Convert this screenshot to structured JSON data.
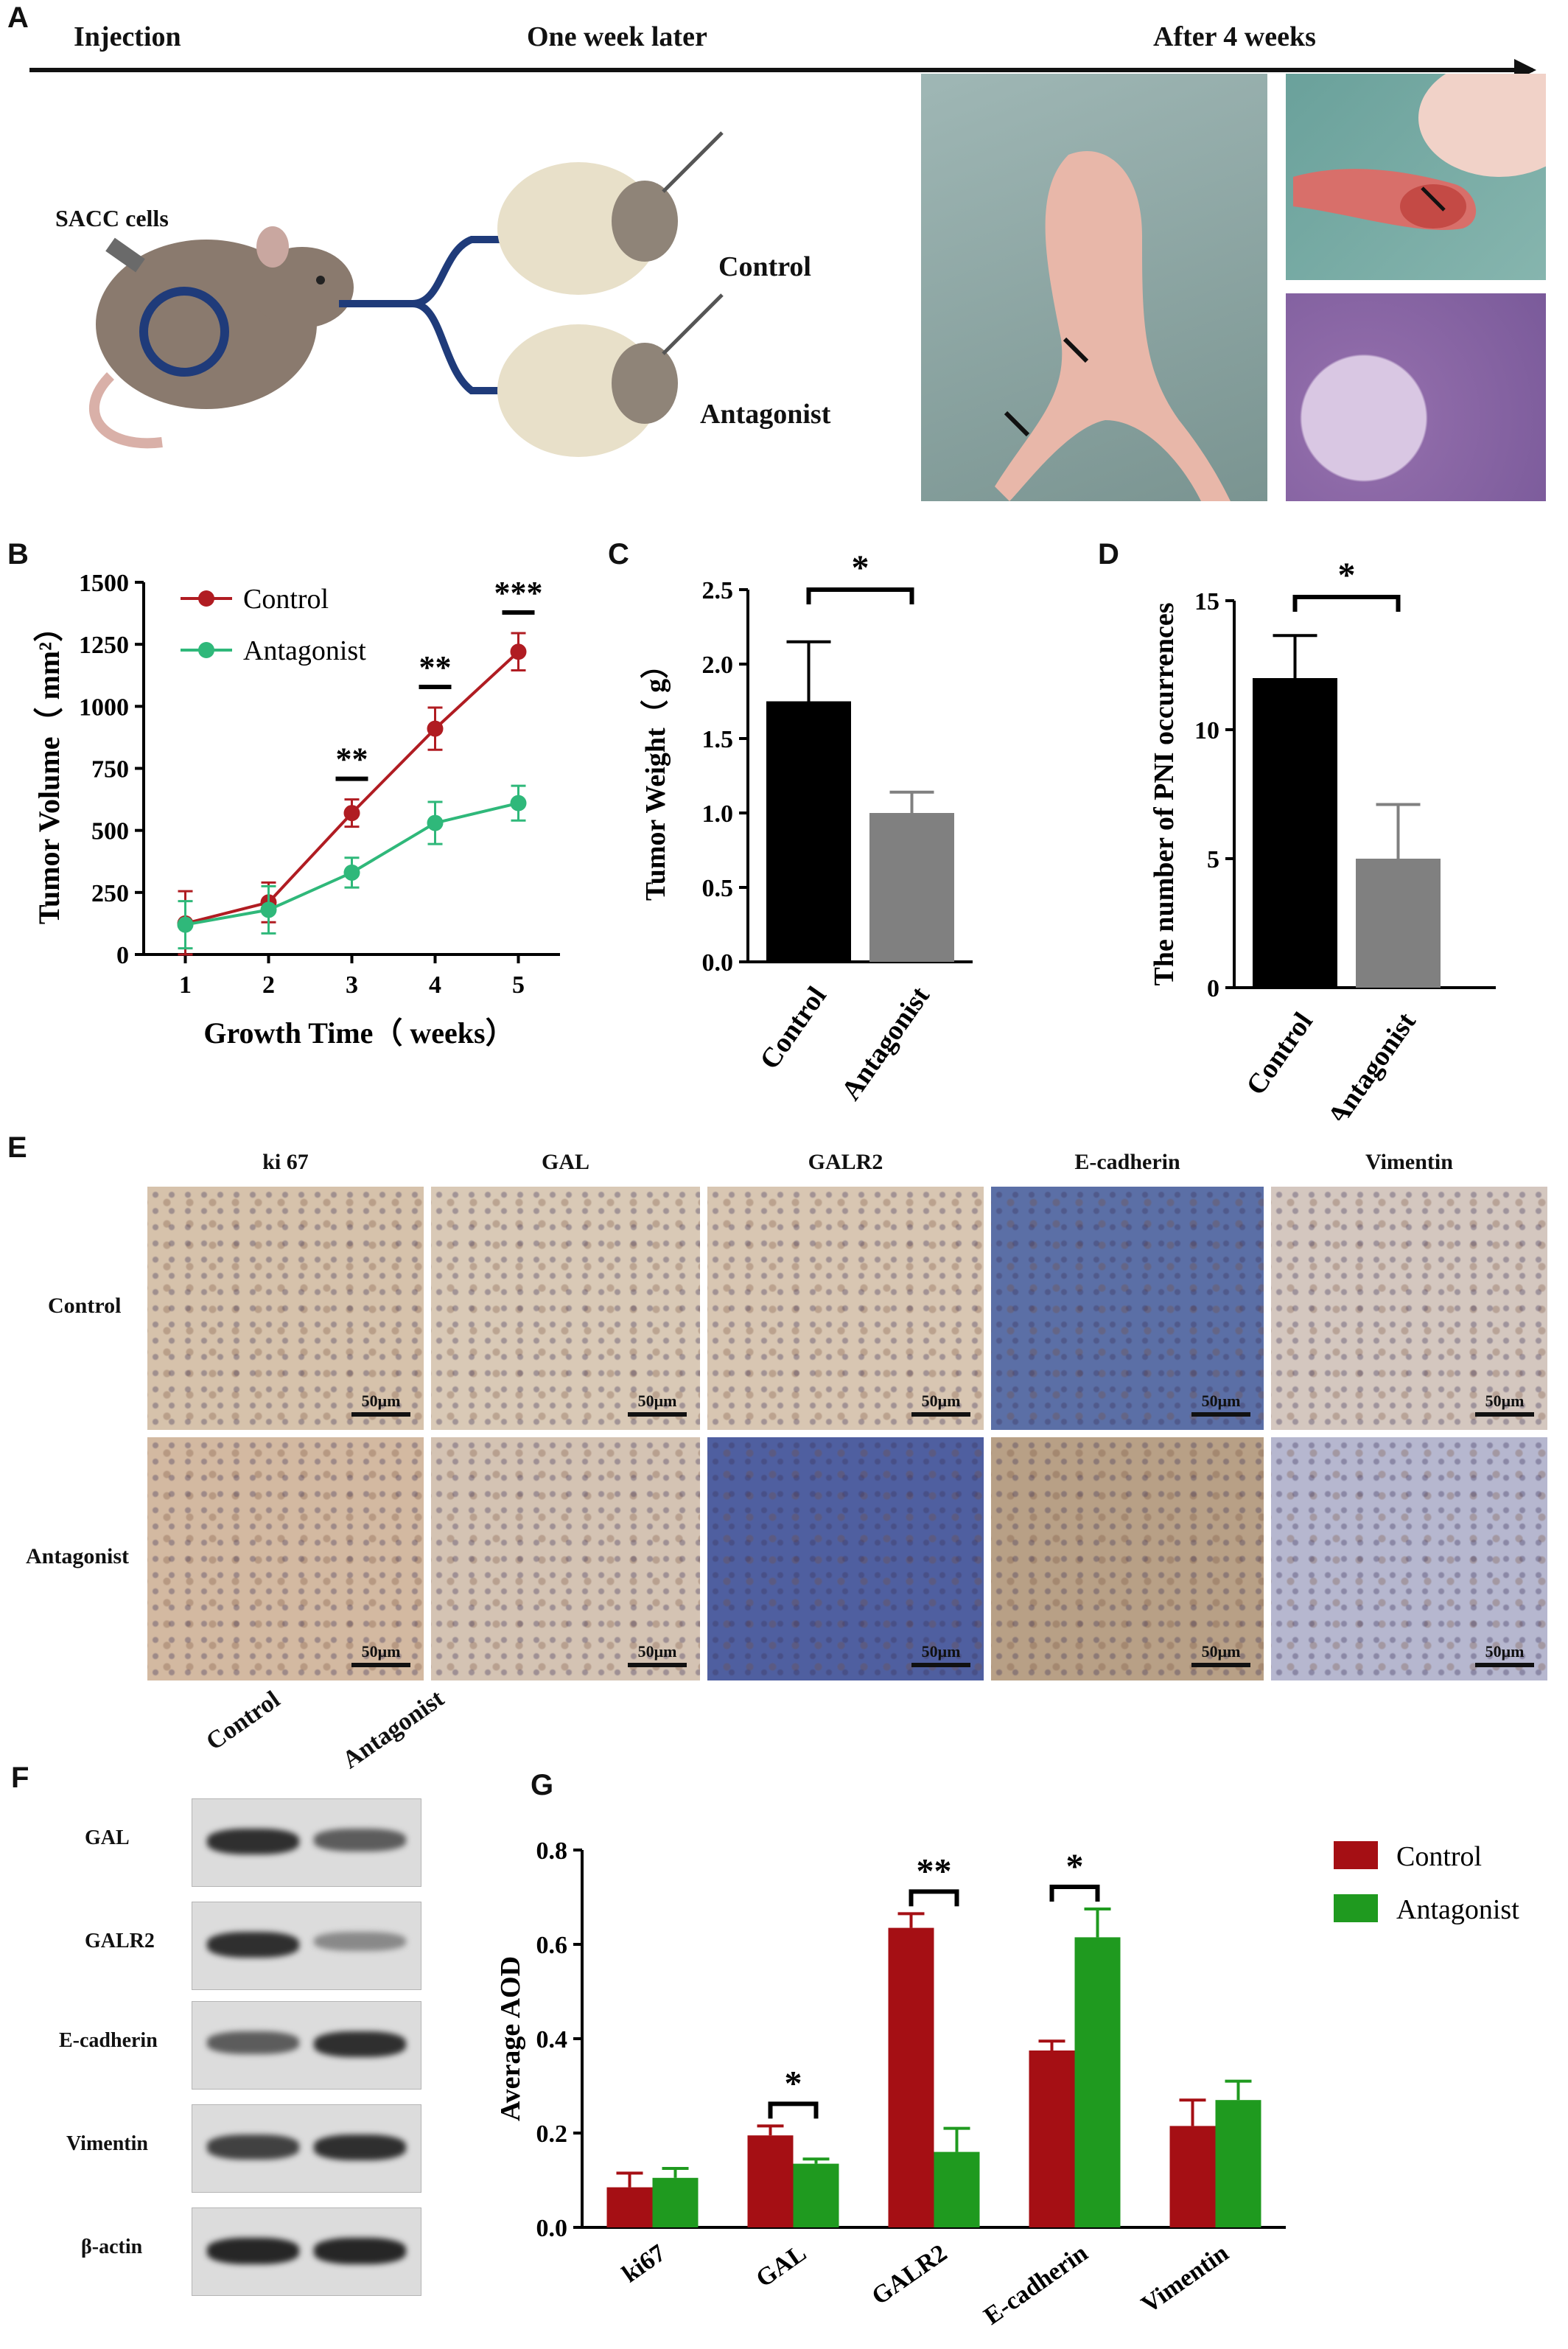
{
  "panels": {
    "a": "A",
    "b": "B",
    "c": "C",
    "d": "D",
    "e": "E",
    "f": "F",
    "g": "G"
  },
  "panelA": {
    "timeline": [
      "Injection",
      "One week later",
      "After 4 weeks"
    ],
    "cells_label": "SACC cells",
    "groups": [
      "Control",
      "Antagonist"
    ]
  },
  "panelE": {
    "columns": [
      "ki 67",
      "GAL",
      "GALR2",
      "E-cadherin",
      "Vimentin"
    ],
    "rows": [
      "Control",
      "Antagonist"
    ],
    "scale": "50μm"
  },
  "panelF": {
    "lanes": [
      "Control",
      "Antagonist"
    ],
    "proteins": [
      "GAL",
      "GALR2",
      "E-cadherin",
      "Vimentin",
      "β-actin"
    ],
    "band_intensity": {
      "GAL": [
        0.85,
        0.6
      ],
      "GALR2": [
        0.85,
        0.35
      ],
      "E-cadherin": [
        0.6,
        0.85
      ],
      "Vimentin": [
        0.75,
        0.85
      ],
      "β-actin": [
        0.9,
        0.9
      ]
    }
  },
  "colors": {
    "control_b": "#b01c22",
    "antagonist_b": "#2fb87a",
    "control_g": "#a50f14",
    "antagonist_g": "#1f9a1f",
    "black": "#000000",
    "gray": "#808080"
  },
  "chart_data": [
    {
      "type": "line",
      "xlabel": "Growth Time（ weeks）",
      "ylabel": "Tumor Volume（ mm²）",
      "x": [
        1,
        2,
        3,
        4,
        5
      ],
      "xlim": [
        0.5,
        5.5
      ],
      "ylim": [
        0,
        1500
      ],
      "yticks": [
        "0",
        "250",
        "500",
        "750",
        "1000",
        "1250",
        "1500"
      ],
      "xticks": [
        "1",
        "2",
        "3",
        "4",
        "5"
      ],
      "series": [
        {
          "name": "Control",
          "values": [
            125,
            210,
            570,
            910,
            1220
          ],
          "errors": [
            130,
            80,
            55,
            85,
            75
          ]
        },
        {
          "name": "Antagonist",
          "values": [
            120,
            180,
            330,
            530,
            610
          ],
          "errors": [
            95,
            95,
            60,
            85,
            70
          ]
        }
      ],
      "annotations": [
        {
          "x": 3,
          "text": "**"
        },
        {
          "x": 4,
          "text": "**"
        },
        {
          "x": 5,
          "text": "***"
        }
      ],
      "legend": "top-left"
    },
    {
      "type": "bar",
      "ylabel": "Tumor Weight（ g）",
      "categories": [
        "Control",
        "Antagonist"
      ],
      "values": [
        1.75,
        1.0
      ],
      "errors": [
        0.4,
        0.14
      ],
      "ylim": [
        0,
        2.5
      ],
      "yticks": [
        "0.0",
        "0.5",
        "1.0",
        "1.5",
        "2.0",
        "2.5"
      ],
      "significance": "*"
    },
    {
      "type": "bar",
      "ylabel": "The number of PNI occurrences",
      "categories": [
        "Control",
        "Antagonist"
      ],
      "values": [
        12,
        5
      ],
      "errors": [
        1.65,
        2.1
      ],
      "ylim": [
        0,
        15
      ],
      "yticks": [
        "0",
        "5",
        "10",
        "15"
      ],
      "significance": "*"
    },
    {
      "type": "bar",
      "ylabel": "Average AOD",
      "categories": [
        "ki67",
        "GAL",
        "GALR2",
        "E-cadherin",
        "Vimentin"
      ],
      "series": [
        {
          "name": "Control",
          "values": [
            0.085,
            0.195,
            0.635,
            0.375,
            0.215
          ],
          "errors": [
            0.03,
            0.02,
            0.03,
            0.02,
            0.055
          ]
        },
        {
          "name": "Antagonist",
          "values": [
            0.105,
            0.135,
            0.16,
            0.615,
            0.27
          ],
          "errors": [
            0.02,
            0.01,
            0.05,
            0.06,
            0.04
          ]
        }
      ],
      "ylim": [
        0,
        0.8
      ],
      "yticks": [
        "0.0",
        "0.2",
        "0.4",
        "0.6",
        "0.8"
      ],
      "annotations": [
        {
          "category": "GAL",
          "text": "*"
        },
        {
          "category": "GALR2",
          "text": "**"
        },
        {
          "category": "E-cadherin",
          "text": "*"
        }
      ],
      "legend": "top-right"
    }
  ]
}
